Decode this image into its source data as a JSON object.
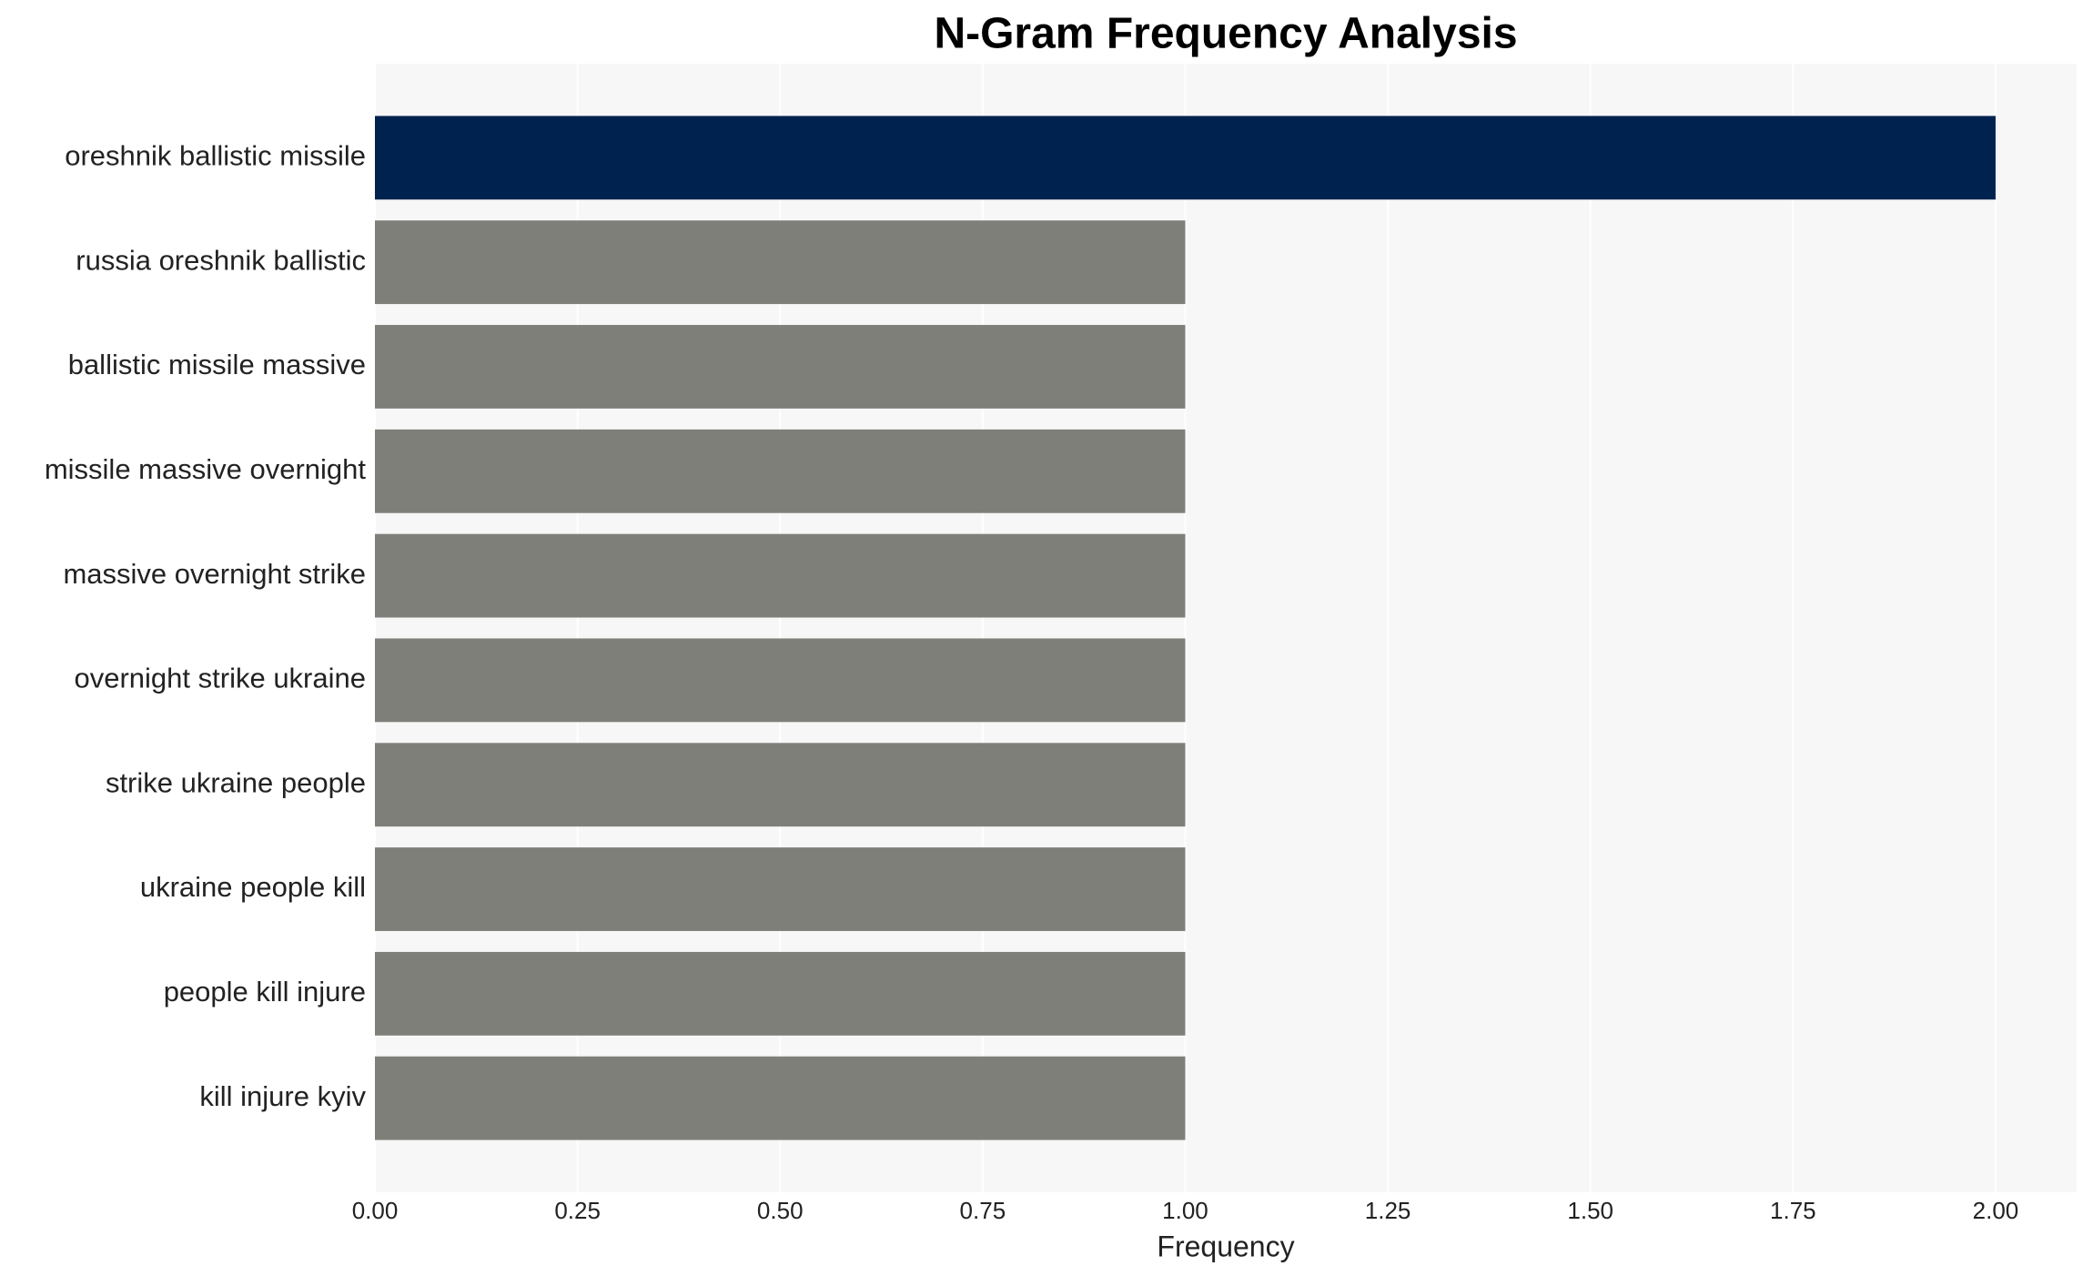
{
  "chart_data": {
    "type": "bar",
    "orientation": "horizontal",
    "title": "N-Gram Frequency Analysis",
    "x_label": "Frequency",
    "categories": [
      "oreshnik ballistic missile",
      "russia oreshnik ballistic",
      "ballistic missile massive",
      "missile massive overnight",
      "massive overnight strike",
      "overnight strike ukraine",
      "strike ukraine people",
      "ukraine people kill",
      "people kill injure",
      "kill injure kyiv"
    ],
    "values": [
      2,
      1,
      1,
      1,
      1,
      1,
      1,
      1,
      1,
      1
    ],
    "colors": [
      "#00224e",
      "#7f7f7a",
      "#7f7f7a",
      "#7f7f7a",
      "#7f7f7a",
      "#7f7f7a",
      "#7f7f7a",
      "#7f7f7a",
      "#7f7f7a",
      "#7f7f7a"
    ],
    "xlim": [
      0,
      2.1
    ],
    "xticks": [
      {
        "value": 0,
        "label": "0.00"
      },
      {
        "value": 0.25,
        "label": "0.25"
      },
      {
        "value": 0.5,
        "label": "0.50"
      },
      {
        "value": 0.75,
        "label": "0.75"
      },
      {
        "value": 1,
        "label": "1.00"
      },
      {
        "value": 1.25,
        "label": "1.25"
      },
      {
        "value": 1.5,
        "label": "1.50"
      },
      {
        "value": 1.75,
        "label": "1.75"
      },
      {
        "value": 2,
        "label": "2.00"
      }
    ],
    "grid": true
  }
}
